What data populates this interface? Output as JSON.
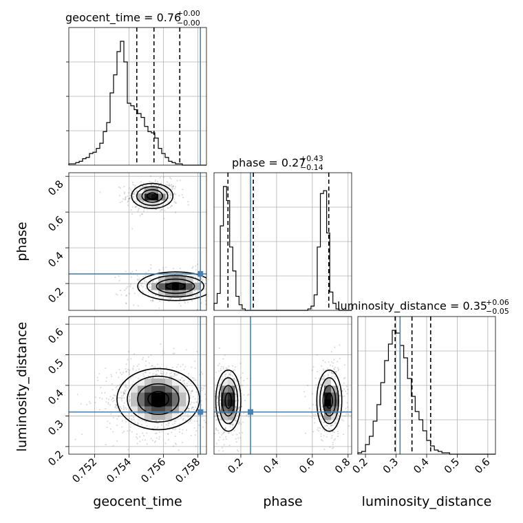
{
  "chart_data": {
    "type": "corner",
    "parameters": [
      "geocent_time",
      "phase",
      "luminosity_distance"
    ],
    "titles": [
      {
        "prefix": "geocent_time = 0.76",
        "plus": "+0.00",
        "minus": "−0.00"
      },
      {
        "prefix": "phase = 0.27",
        "plus": "+0.43",
        "minus": "−0.14"
      },
      {
        "prefix": "luminosity_distance = 0.35",
        "plus": "+0.06",
        "minus": "−0.05"
      }
    ],
    "axis_labels": {
      "x": [
        "geocent_time",
        "phase",
        "luminosity_distance"
      ],
      "y": [
        "phase",
        "luminosity_distance"
      ]
    },
    "ranges": {
      "geocent_time": [
        0.7505,
        0.7585
      ],
      "phase": [
        0.05,
        0.82
      ],
      "luminosity_distance": [
        0.175,
        0.625
      ]
    },
    "ticks": {
      "geocent_time": [
        0.752,
        0.754,
        0.756,
        0.758
      ],
      "phase": [
        0.2,
        0.4,
        0.6,
        0.8
      ],
      "luminosity_distance": [
        0.2,
        0.3,
        0.4,
        0.5,
        0.6
      ]
    },
    "tick_labels": {
      "geocent_time": [
        "0.752",
        "0.754",
        "0.756",
        "0.758"
      ],
      "phase": [
        "0.2",
        "0.4",
        "0.6",
        "0.8"
      ],
      "luminosity_distance": [
        "0.2",
        "0.3",
        "0.4",
        "0.5",
        "0.6"
      ]
    },
    "truths": {
      "geocent_time": 0.75815,
      "phase": 0.254,
      "luminosity_distance": 0.313
    },
    "quantiles": {
      "geocent_time": [
        0.75445,
        0.75545,
        0.75695
      ],
      "phase": [
        0.128,
        0.27,
        0.692
      ],
      "luminosity_distance": [
        0.297,
        0.352,
        0.413
      ]
    },
    "histograms": {
      "geocent_time": {
        "bin_start": 0.7505,
        "bin_width": 0.0002,
        "counts": [
          1,
          1,
          2,
          3,
          5,
          6,
          9,
          10,
          13,
          17,
          26,
          33,
          56,
          70,
          88,
          96,
          80,
          48,
          46,
          43,
          40,
          37,
          30,
          26,
          25,
          21,
          13,
          9,
          6,
          3,
          2,
          1,
          1,
          0,
          0,
          0,
          0,
          0,
          0,
          0
        ]
      },
      "phase": {
        "bin_start": 0.05,
        "bin_width": 0.0175,
        "counts": [
          5,
          12,
          60,
          88,
          78,
          45,
          28,
          10,
          4,
          1,
          0,
          0,
          0,
          0,
          0,
          0,
          0,
          0,
          0,
          0,
          0,
          0,
          0,
          0,
          0,
          0,
          0,
          0,
          0,
          0,
          1,
          3,
          11,
          45,
          83,
          85,
          55,
          13,
          5,
          1,
          0,
          0,
          0,
          0
        ]
      },
      "luminosity_distance": {
        "bin_start": 0.175,
        "bin_width": 0.0125,
        "counts": [
          1,
          2,
          7,
          13,
          24,
          36,
          52,
          68,
          80,
          90,
          88,
          79,
          70,
          55,
          42,
          31,
          25,
          17,
          10,
          6,
          3,
          2,
          1,
          1,
          0,
          0,
          0,
          0,
          0,
          0,
          0,
          0,
          0,
          0,
          0,
          0
        ]
      }
    },
    "distributions_2d": {
      "phase_vs_geocent_time": {
        "modes": [
          {
            "x": 0.75535,
            "y": 0.69,
            "sx": 0.0006,
            "sy": 0.035,
            "w": 0.5
          },
          {
            "x": 0.7567,
            "y": 0.185,
            "sx": 0.0011,
            "sy": 0.04,
            "w": 0.5
          }
        ]
      },
      "luminosity_distance_vs_geocent_time": {
        "modes": [
          {
            "x": 0.7557,
            "y": 0.355,
            "sx": 0.0012,
            "sy": 0.05,
            "w": 1.0
          }
        ]
      },
      "luminosity_distance_vs_phase": {
        "modes": [
          {
            "x": 0.13,
            "y": 0.35,
            "sx": 0.035,
            "sy": 0.05,
            "w": 0.5
          },
          {
            "x": 0.695,
            "y": 0.35,
            "sx": 0.035,
            "sy": 0.05,
            "w": 0.5
          }
        ]
      }
    },
    "grid": true,
    "colors": {
      "truth": "#4682b4",
      "hist": "#000000",
      "points": "#606060",
      "frame": "#000000"
    }
  }
}
